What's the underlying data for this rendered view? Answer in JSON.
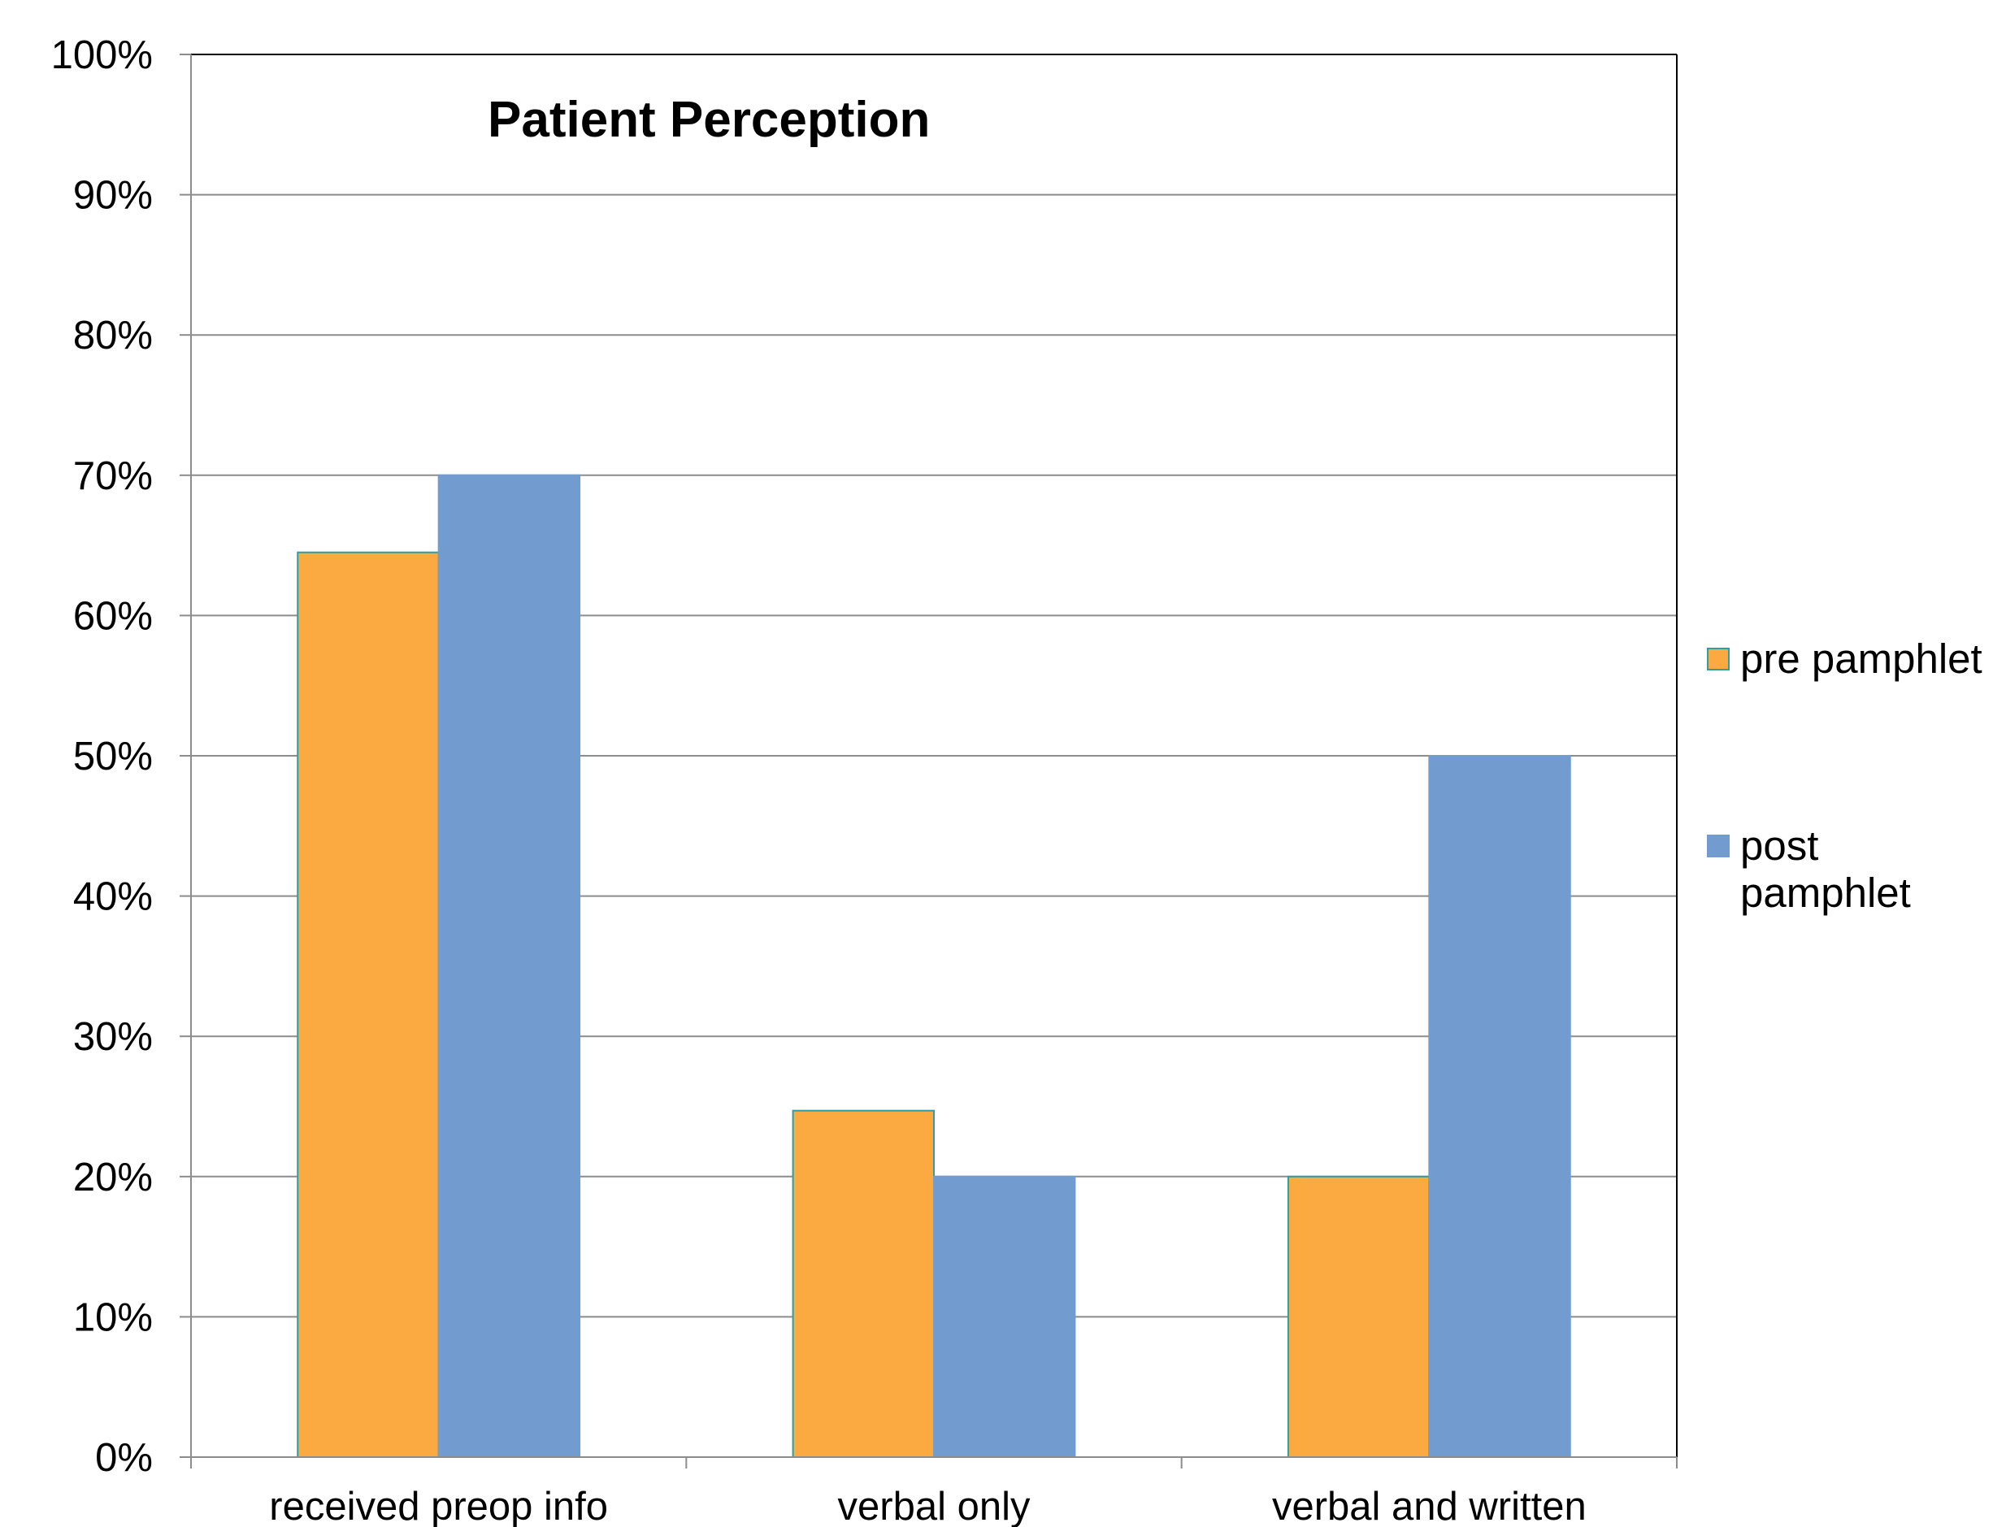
{
  "chart_data": {
    "type": "bar",
    "title": "Patient Perception",
    "xlabel": "",
    "ylabel": "",
    "categories": [
      "received preop info",
      "verbal only",
      "verbal and written"
    ],
    "series": [
      {
        "name": "pre pamphlet",
        "name_lines": [
          "pre pamphlet"
        ],
        "values": [
          0.645,
          0.247,
          0.2
        ],
        "color": "#FBAA42",
        "stroke": "#2E9E9E"
      },
      {
        "name": "post pamphlet",
        "name_lines": [
          "post",
          "pamphlet"
        ],
        "values": [
          0.7,
          0.2,
          0.5
        ],
        "color": "#729BCF",
        "stroke": "#729BCF"
      }
    ],
    "yticks": [
      "0%",
      "10%",
      "20%",
      "30%",
      "40%",
      "50%",
      "60%",
      "70%",
      "80%",
      "90%",
      "100%"
    ],
    "ylim": [
      0,
      1
    ],
    "grid": true,
    "legend": "right"
  }
}
